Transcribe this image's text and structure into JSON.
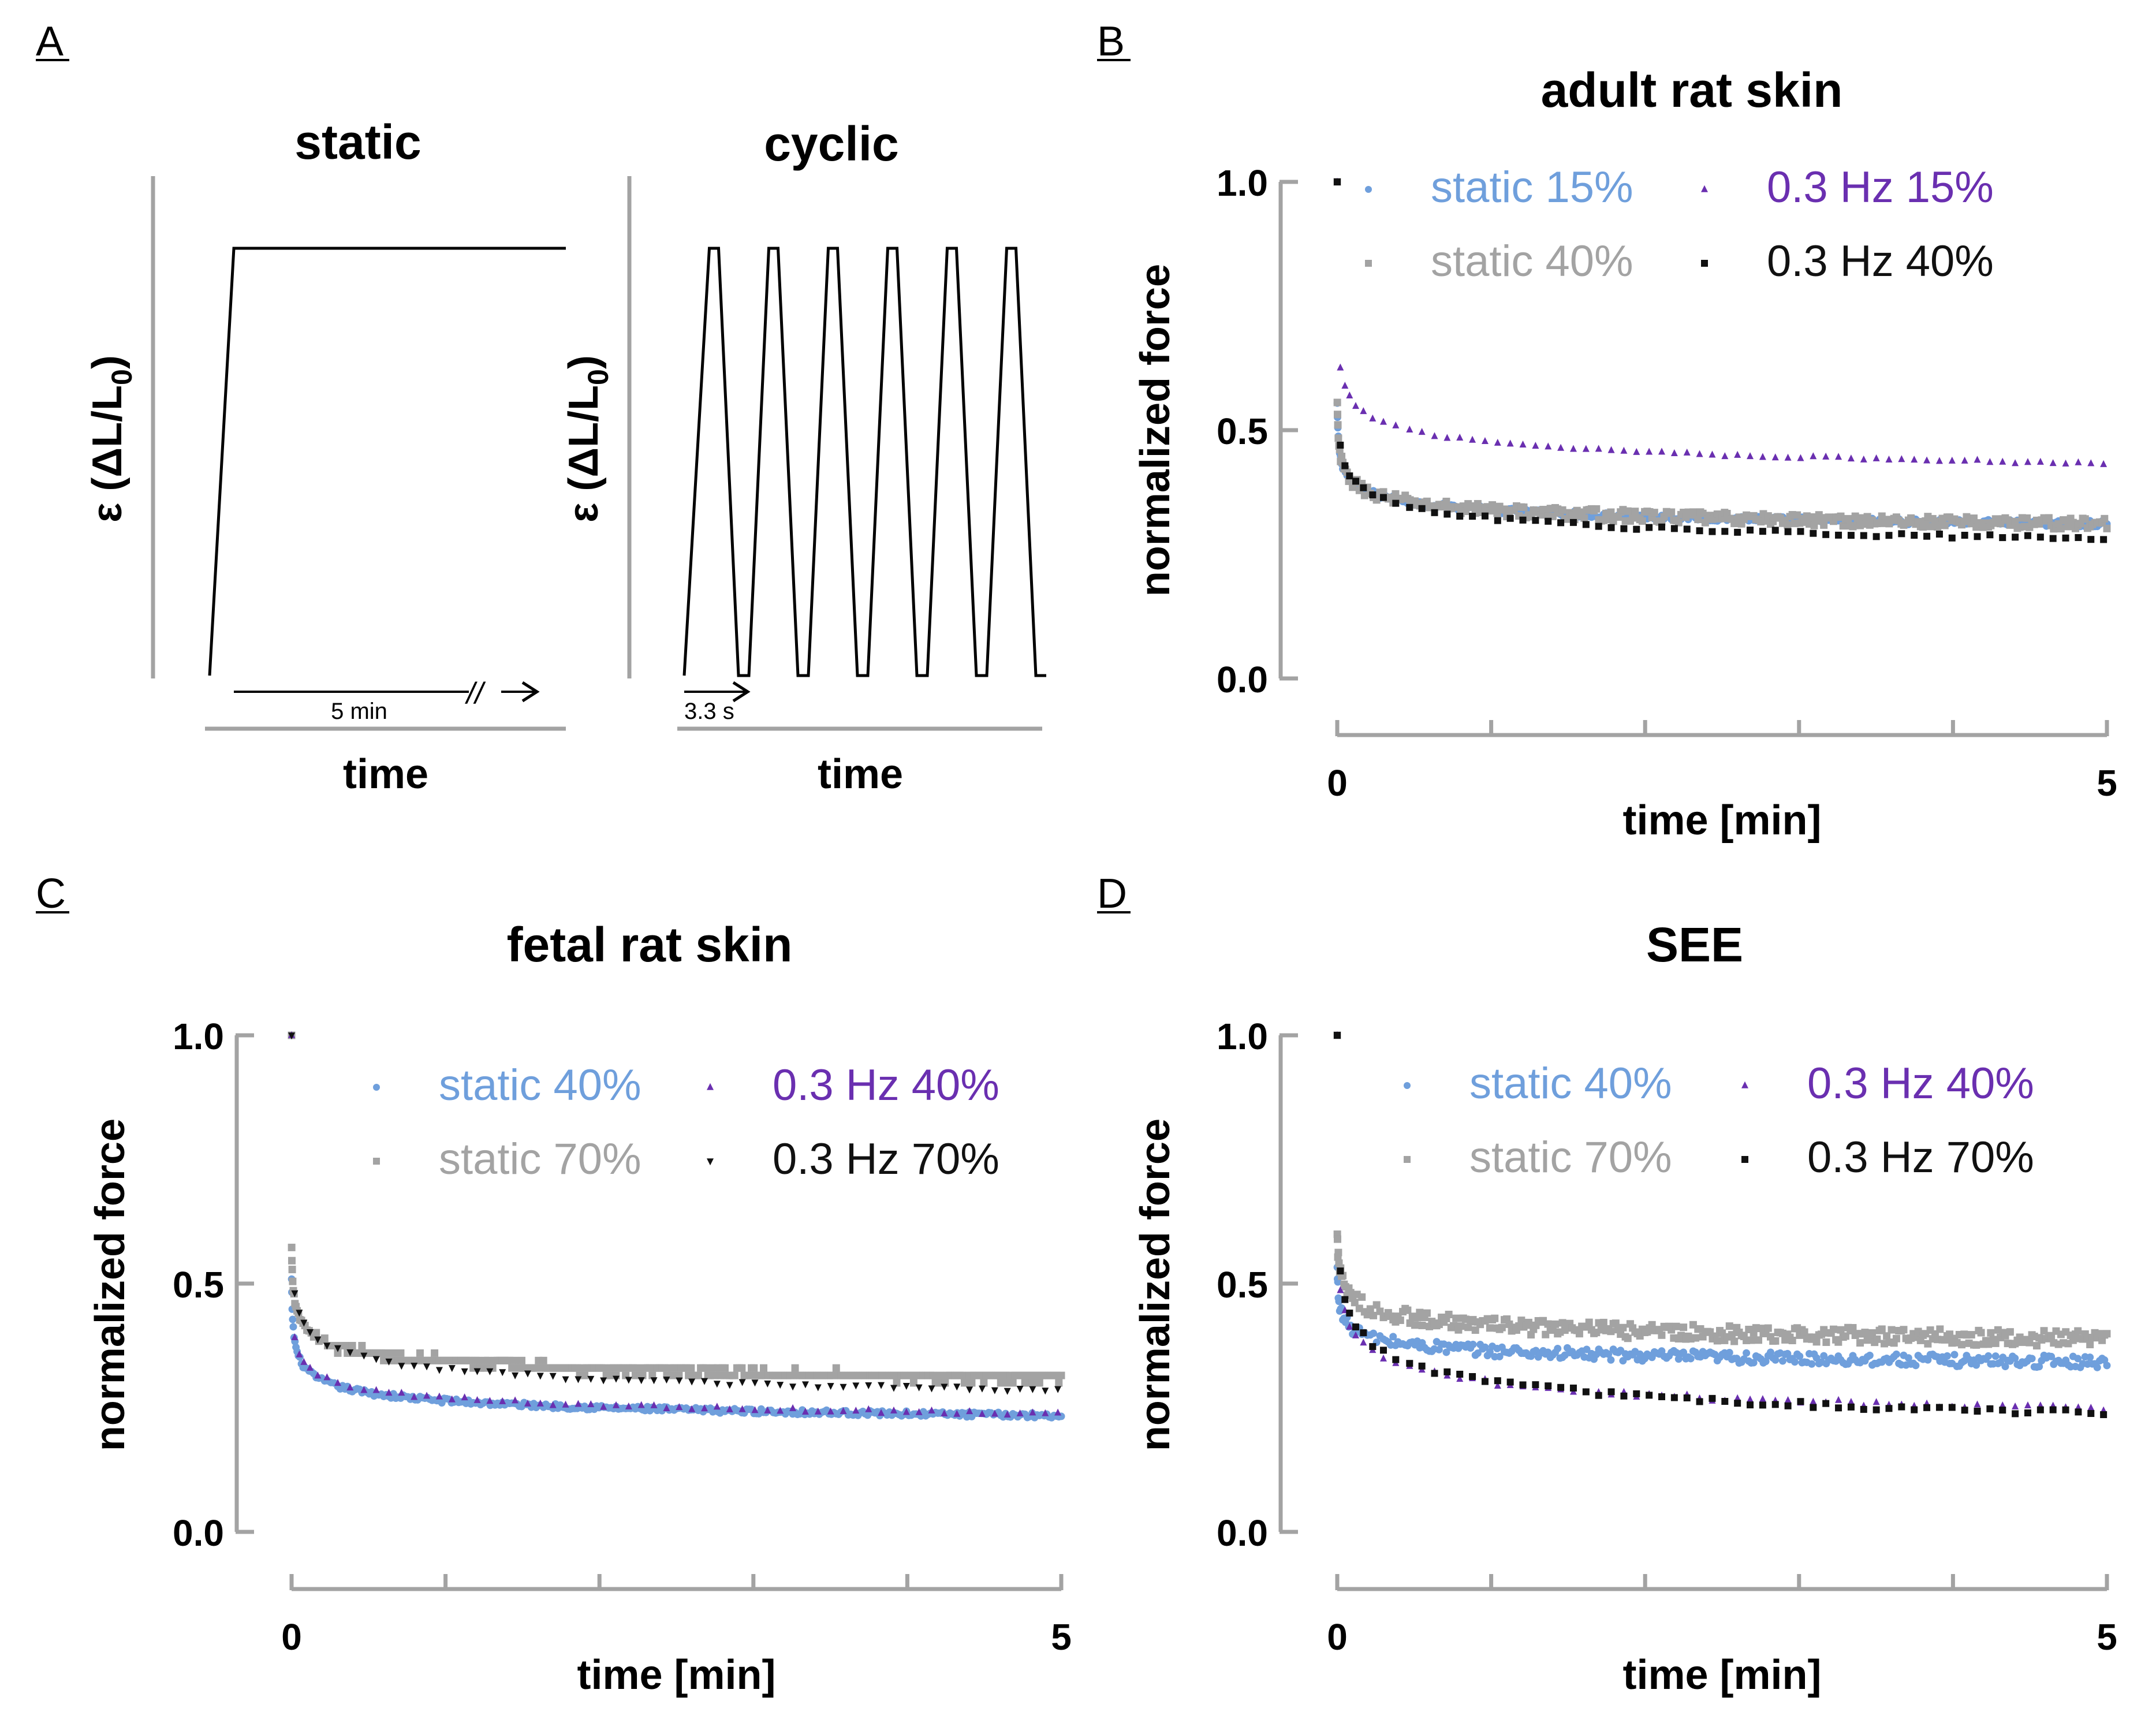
{
  "panels": {
    "a": {
      "letter": "A",
      "static": {
        "title": "static",
        "ylabel_main": "ε (ΔL/L",
        "ylabel_sub": "0",
        "ylabel_close": ")",
        "xlabel": "time",
        "duration_label": "5 min",
        "break_mark": "//"
      },
      "cyclic": {
        "title": "cyclic",
        "ylabel_main": "ε (ΔL/L",
        "ylabel_sub": "0",
        "ylabel_close": ")",
        "xlabel": "time",
        "period_label": "3.3 s"
      }
    },
    "b": {
      "letter": "B"
    },
    "c": {
      "letter": "C"
    },
    "d": {
      "letter": "D"
    }
  },
  "colors": {
    "blue": "#6f9fdc",
    "gray": "#a3a3a3",
    "purple": "#6a2fb0",
    "black": "#111111",
    "axis": "#a3a3a3"
  },
  "chart_data": [
    {
      "panel": "B",
      "type": "scatter",
      "title": "adult rat skin",
      "xlabel": "time [min]",
      "ylabel": "normalized force",
      "xlim": [
        0,
        5
      ],
      "ylim": [
        0,
        1
      ],
      "xticks": [
        0,
        5
      ],
      "yticks": [
        0.0,
        0.5,
        1.0
      ],
      "ytick_labels": [
        "0.0",
        "0.5",
        "1.0"
      ],
      "legend": "top-right, two columns",
      "series": [
        {
          "name": "static 15%",
          "color": "blue",
          "marker": "circle",
          "model": {
            "a": 0.22,
            "b": 0.34,
            "p": 0.4,
            "c": 0.002,
            "f": 0.36
          },
          "noise": 0.006
        },
        {
          "name": "static 40%",
          "color": "gray",
          "marker": "square",
          "model": {
            "a": 0.22,
            "b": 0.34,
            "p": 0.4,
            "c": 0.002,
            "f": 0.36
          },
          "noise": 0.012
        },
        {
          "name": "0.3 Hz 15%",
          "color": "purple",
          "marker": "triangle",
          "model": {
            "a": 0.27,
            "b": 0.45,
            "p": 0.35,
            "c": 0.005,
            "f": 0.45
          },
          "noise": 0.003
        },
        {
          "name": "0.3 Hz 40%",
          "color": "black",
          "marker": "square",
          "model": {
            "a": 0.15,
            "b": 0.42,
            "p": 0.4,
            "c": 0.005,
            "f": 0.35
          },
          "noise": 0.004
        }
      ]
    },
    {
      "panel": "C",
      "type": "scatter",
      "title": "fetal rat skin",
      "xlabel": "time [min]",
      "ylabel": "normalized force",
      "xlim": [
        0,
        5
      ],
      "ylim": [
        0,
        1
      ],
      "xticks": [
        0,
        5
      ],
      "yticks": [
        0.0,
        0.5,
        1.0
      ],
      "ytick_labels": [
        "0.0",
        "0.5",
        "1.0"
      ],
      "legend": "top-right, two columns",
      "series": [
        {
          "name": "static 40%",
          "color": "blue",
          "marker": "circle",
          "model": {
            "a": 0.15,
            "b": 0.37,
            "p": 0.45,
            "c": 0.002,
            "f": 0.27
          },
          "noise": 0.005
        },
        {
          "name": "static 70%",
          "color": "gray",
          "marker": "square",
          "model": {
            "a": 0.2,
            "b": 0.38,
            "p": 0.4,
            "c": 0.003,
            "f": 0.32
          },
          "noise": 0.008,
          "quantize": 0.015
        },
        {
          "name": "0.3 Hz 40%",
          "color": "purple",
          "marker": "triangle",
          "model": {
            "a": 0.15,
            "b": 0.34,
            "p": 0.45,
            "c": 0.004,
            "f": 0.3
          },
          "noise": 0.004
        },
        {
          "name": "0.3 Hz 70%",
          "color": "black",
          "marker": "triangle-down",
          "model": {
            "a": 0.15,
            "b": 0.45,
            "p": 0.4,
            "c": 0.004,
            "f": 0.4
          },
          "noise": 0.004
        }
      ]
    },
    {
      "panel": "D",
      "type": "scatter",
      "title": "SEE",
      "xlabel": "time [min]",
      "ylabel": "normalized force",
      "xlim": [
        0,
        5
      ],
      "ylim": [
        0,
        1
      ],
      "xticks": [
        0,
        5
      ],
      "yticks": [
        0.0,
        0.5,
        1.0
      ],
      "ytick_labels": [
        "0.0",
        "0.5",
        "1.0"
      ],
      "legend": "top-right, two columns",
      "series": [
        {
          "name": "static 40%",
          "color": "blue",
          "marker": "circle",
          "model": {
            "a": 0.27,
            "b": 0.27,
            "p": 0.4,
            "c": 0.002,
            "f": 0.35
          },
          "noise": 0.012
        },
        {
          "name": "static 70%",
          "color": "gray",
          "marker": "square",
          "model": {
            "a": 0.3,
            "b": 0.31,
            "p": 0.4,
            "c": 0.003,
            "f": 0.39
          },
          "noise": 0.016
        },
        {
          "name": "0.3 Hz 40%",
          "color": "purple",
          "marker": "triangle",
          "model": {
            "a": 0.1,
            "b": 0.48,
            "p": 0.45,
            "c": 0.01,
            "f": 0.3
          },
          "noise": 0.006
        },
        {
          "name": "0.3 Hz 70%",
          "color": "black",
          "marker": "square",
          "model": {
            "a": 0.06,
            "b": 0.58,
            "p": 0.45,
            "c": 0.01,
            "f": 0.35
          },
          "noise": 0.006
        }
      ]
    }
  ]
}
